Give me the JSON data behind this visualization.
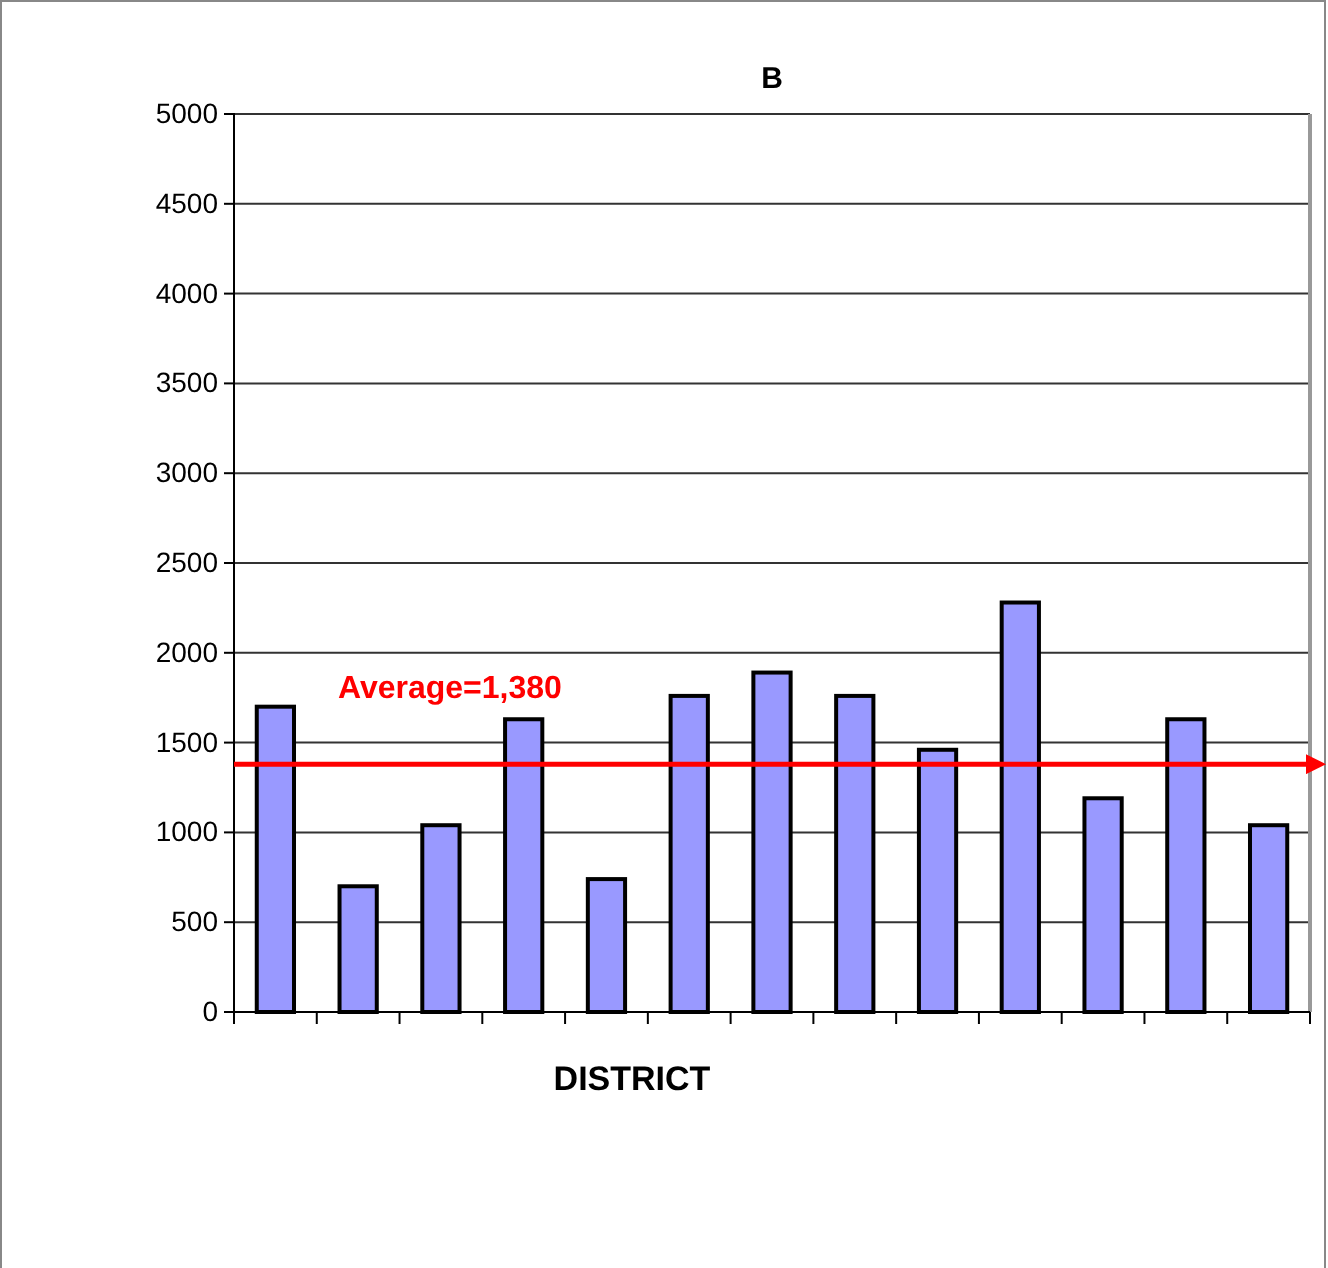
{
  "chart_data": {
    "type": "bar",
    "title": "B",
    "xlabel": "DISTRICT",
    "categories": [
      null,
      null,
      null,
      null,
      null,
      null,
      null,
      null,
      null,
      null,
      null,
      null,
      null
    ],
    "values": [
      1700,
      700,
      1040,
      1630,
      740,
      1760,
      1890,
      1760,
      1460,
      2280,
      1190,
      1630,
      1040
    ],
    "color": "#9999ff",
    "ylim": [
      0,
      5000
    ],
    "yticks": [
      0,
      500,
      1000,
      1500,
      2000,
      2500,
      3000,
      3500,
      4000,
      4500,
      5000
    ],
    "grid": "y",
    "ref_lines": [
      {
        "axis": "y",
        "value": 1380,
        "label": "Average=1,380",
        "color": "#ff0000"
      }
    ]
  }
}
